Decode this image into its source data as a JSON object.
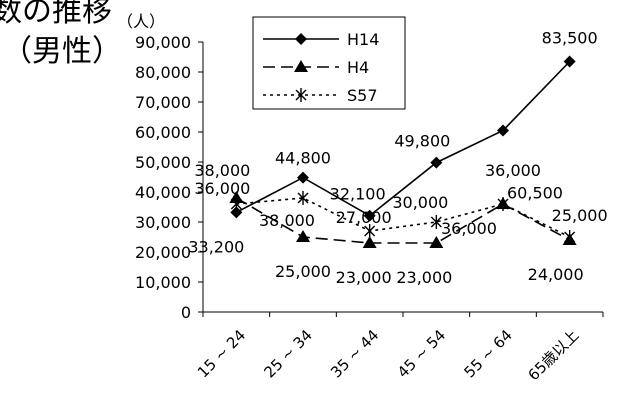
{
  "title_fragment": "数の推移",
  "subtitle": "（男性）",
  "unit_label": "（人）",
  "chart_data": {
    "type": "line",
    "categories": [
      "15 ~ 24",
      "25 ~ 34",
      "35 ~ 44",
      "45 ~ 54",
      "55 ~ 64",
      "65歳以上"
    ],
    "ylim": [
      0,
      90000
    ],
    "yticks": [
      0,
      10000,
      20000,
      30000,
      40000,
      50000,
      60000,
      70000,
      80000,
      90000
    ],
    "ytick_labels": [
      "0",
      "10,000",
      "20,000",
      "30,000",
      "40,000",
      "50,000",
      "60,000",
      "70,000",
      "80,000",
      "90,000"
    ],
    "grid": false,
    "legend_position": "top-center",
    "series": [
      {
        "name": "H14",
        "values": [
          33200,
          44800,
          32100,
          49800,
          60500,
          83500
        ],
        "labels": [
          "33,200",
          "44,800",
          "32,100",
          "49,800",
          "60,500",
          "83,500"
        ],
        "marker": "diamond",
        "line": "solid",
        "color": "#000000"
      },
      {
        "name": "H4",
        "values": [
          38000,
          25000,
          23000,
          23000,
          36000,
          24000
        ],
        "labels": [
          "38,000",
          "25,000",
          "23,000",
          "23,000",
          "36,000",
          "24,000"
        ],
        "marker": "triangle",
        "line": "dashed",
        "color": "#000000"
      },
      {
        "name": "S57",
        "values": [
          36000,
          38000,
          27000,
          30000,
          36000,
          25000
        ],
        "labels": [
          "36,000",
          "38,000",
          "27,000",
          "30,000",
          "36,000",
          "25,000"
        ],
        "marker": "asterisk",
        "line": "dotted",
        "color": "#000000"
      }
    ]
  }
}
